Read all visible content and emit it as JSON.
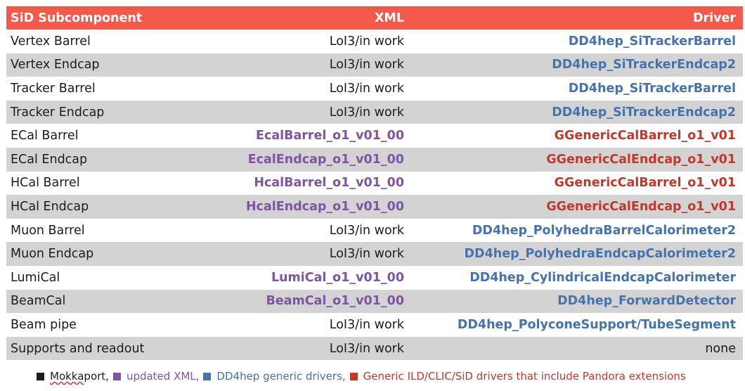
{
  "colors": {
    "header_bg": "#f4594c",
    "row_alt": "#d3d3d3",
    "updated_xml": "#7f54a2",
    "dd4hep_generic": "#4573ad",
    "generic_pandora": "#c0392b",
    "mokka": "#1c1c1c"
  },
  "header": {
    "col1": "SiD Subcomponent",
    "col2": "XML",
    "col3": "Driver"
  },
  "rows": [
    {
      "subcomponent": "Vertex Barrel",
      "xml": "LoI3/in work",
      "xml_kind": "plain",
      "driver": "DD4hep_SiTrackerBarrel",
      "driver_kind": "dd4hep"
    },
    {
      "subcomponent": "Vertex Endcap",
      "xml": "LoI3/in work",
      "xml_kind": "plain",
      "driver": "DD4hep_SiTrackerEndcap2",
      "driver_kind": "dd4hep"
    },
    {
      "subcomponent": "Tracker Barrel",
      "xml": "LoI3/in work",
      "xml_kind": "plain",
      "driver": "DD4hep_SiTrackerBarrel",
      "driver_kind": "dd4hep"
    },
    {
      "subcomponent": "Tracker Endcap",
      "xml": "LoI3/in work",
      "xml_kind": "plain",
      "driver": "DD4hep_SiTrackerEndcap2",
      "driver_kind": "dd4hep"
    },
    {
      "subcomponent": "ECal Barrel",
      "xml": "EcalBarrel_o1_v01_00",
      "xml_kind": "updated",
      "driver": "GGenericCalBarrel_o1_v01",
      "driver_kind": "generic"
    },
    {
      "subcomponent": "ECal Endcap",
      "xml": "EcalEndcap_o1_v01_00",
      "xml_kind": "updated",
      "driver": "GGenericCalEndcap_o1_v01",
      "driver_kind": "generic"
    },
    {
      "subcomponent": "HCal Barrel",
      "xml": "HcalBarrel_o1_v01_00",
      "xml_kind": "updated",
      "driver": "GGenericCalBarrel_o1_v01",
      "driver_kind": "generic"
    },
    {
      "subcomponent": "HCal Endcap",
      "xml": "HcalEndcap_o1_v01_00",
      "xml_kind": "updated",
      "driver": "GGenericCalEndcap_o1_v01",
      "driver_kind": "generic"
    },
    {
      "subcomponent": "Muon Barrel",
      "xml": "LoI3/in work",
      "xml_kind": "plain",
      "driver": "DD4hep_PolyhedraBarrelCalorimeter2",
      "driver_kind": "dd4hep"
    },
    {
      "subcomponent": "Muon Endcap",
      "xml": "LoI3/in work",
      "xml_kind": "plain",
      "driver": "DD4hep_PolyhedraEndcapCalorimeter2",
      "driver_kind": "dd4hep"
    },
    {
      "subcomponent": "LumiCal",
      "xml": "LumiCal_o1_v01_00",
      "xml_kind": "updated",
      "driver": "DD4hep_CylindricalEndcapCalorimeter",
      "driver_kind": "dd4hep"
    },
    {
      "subcomponent": "BeamCal",
      "xml": "BeamCal_o1_v01_00",
      "xml_kind": "updated",
      "driver": "DD4hep_ForwardDetector",
      "driver_kind": "dd4hep"
    },
    {
      "subcomponent": "Beam pipe",
      "xml": "LoI3/in work",
      "xml_kind": "plain",
      "driver": "DD4hep_PolyconeSupport/TubeSegment",
      "driver_kind": "dd4hep"
    },
    {
      "subcomponent": "Supports and readout",
      "xml": "LoI3/in work",
      "xml_kind": "plain",
      "driver": "none",
      "driver_kind": "plain"
    }
  ],
  "legend": {
    "mokka": "Mokka",
    "mokka_suffix": " port,",
    "updated": "updated XML,",
    "dd4hep": "DD4hep generic drivers,",
    "generic": "Generic ILD/CLIC/SiD drivers that include Pandora extensions"
  }
}
